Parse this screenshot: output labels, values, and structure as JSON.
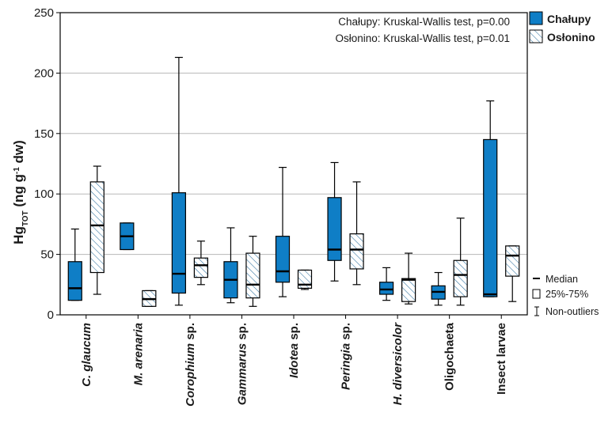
{
  "chart_data": {
    "type": "boxplot",
    "ylabel": {
      "base": "Hg",
      "base_sub": "TOT",
      "unit_pre": " (ng g",
      "unit_sup": "-1",
      "unit_post": " dw)"
    },
    "ylim": [
      0,
      250
    ],
    "yticks": [
      0,
      50,
      100,
      150,
      200,
      250
    ],
    "grid": true,
    "categories": [
      {
        "parts": [
          {
            "text": "C. glaucum",
            "italic": true
          }
        ]
      },
      {
        "parts": [
          {
            "text": "M. arenaria",
            "italic": true
          }
        ]
      },
      {
        "parts": [
          {
            "text": "Corophium",
            "italic": true
          },
          {
            "text": " sp.",
            "italic": false
          }
        ]
      },
      {
        "parts": [
          {
            "text": "Gammarus",
            "italic": true
          },
          {
            "text": " sp.",
            "italic": false
          }
        ]
      },
      {
        "parts": [
          {
            "text": "Idotea",
            "italic": true
          },
          {
            "text": " sp.",
            "italic": false
          }
        ]
      },
      {
        "parts": [
          {
            "text": "Peringia",
            "italic": true
          },
          {
            "text": " sp.",
            "italic": false
          }
        ]
      },
      {
        "parts": [
          {
            "text": "H. diversicolor",
            "italic": true
          }
        ]
      },
      {
        "parts": [
          {
            "text": "Oligochaeta",
            "italic": false
          }
        ]
      },
      {
        "parts": [
          {
            "text": "Insect larvae",
            "italic": false
          }
        ]
      }
    ],
    "series": [
      {
        "name": "Chałupy",
        "color": "#0f7ec6",
        "pattern": "solid",
        "boxes": [
          {
            "min": 12,
            "q1": 12,
            "median": 22,
            "q3": 44,
            "max": 71
          },
          {
            "min": 54,
            "q1": 54,
            "median": 65,
            "q3": 76,
            "max": 76
          },
          {
            "min": 8,
            "q1": 18,
            "median": 34,
            "q3": 101,
            "max": 213
          },
          {
            "min": 10,
            "q1": 14,
            "median": 29,
            "q3": 44,
            "max": 72
          },
          {
            "min": 15,
            "q1": 27,
            "median": 36,
            "q3": 65,
            "max": 122
          },
          {
            "min": 28,
            "q1": 45,
            "median": 54,
            "q3": 97,
            "max": 126
          },
          {
            "min": 12,
            "q1": 17,
            "median": 21,
            "q3": 27,
            "max": 39
          },
          {
            "min": 8,
            "q1": 13,
            "median": 19,
            "q3": 24,
            "max": 35
          },
          {
            "min": 15,
            "q1": 15,
            "median": 17,
            "q3": 145,
            "max": 177
          }
        ]
      },
      {
        "name": "Osłonino",
        "color": "#2a6f9e",
        "pattern": "hatched",
        "boxes": [
          {
            "min": 17,
            "q1": 35,
            "median": 74,
            "q3": 110,
            "max": 123
          },
          {
            "min": 7,
            "q1": 7,
            "median": 13,
            "q3": 20,
            "max": 20
          },
          {
            "min": 25,
            "q1": 31,
            "median": 41,
            "q3": 47,
            "max": 61
          },
          {
            "min": 7,
            "q1": 14,
            "median": 25,
            "q3": 51,
            "max": 65
          },
          {
            "min": 21,
            "q1": 22,
            "median": 25,
            "q3": 37,
            "max": 37
          },
          {
            "min": 25,
            "q1": 38,
            "median": 54,
            "q3": 67,
            "max": 110
          },
          {
            "min": 9,
            "q1": 11,
            "median": 29,
            "q3": 30,
            "max": 51
          },
          {
            "min": 8,
            "q1": 15,
            "median": 33,
            "q3": 45,
            "max": 80
          },
          {
            "min": 11,
            "q1": 32,
            "median": 49,
            "q3": 57,
            "max": 57
          }
        ]
      }
    ],
    "annotations": [
      "Chałupy: Kruskal-Wallis test, p=0.00",
      "Osłonino: Kruskal-Wallis test, p=0.01"
    ],
    "legend_position": "top-right",
    "key": {
      "median": "Median",
      "box": "25%-75%",
      "whisker": "Non-outliers"
    }
  }
}
